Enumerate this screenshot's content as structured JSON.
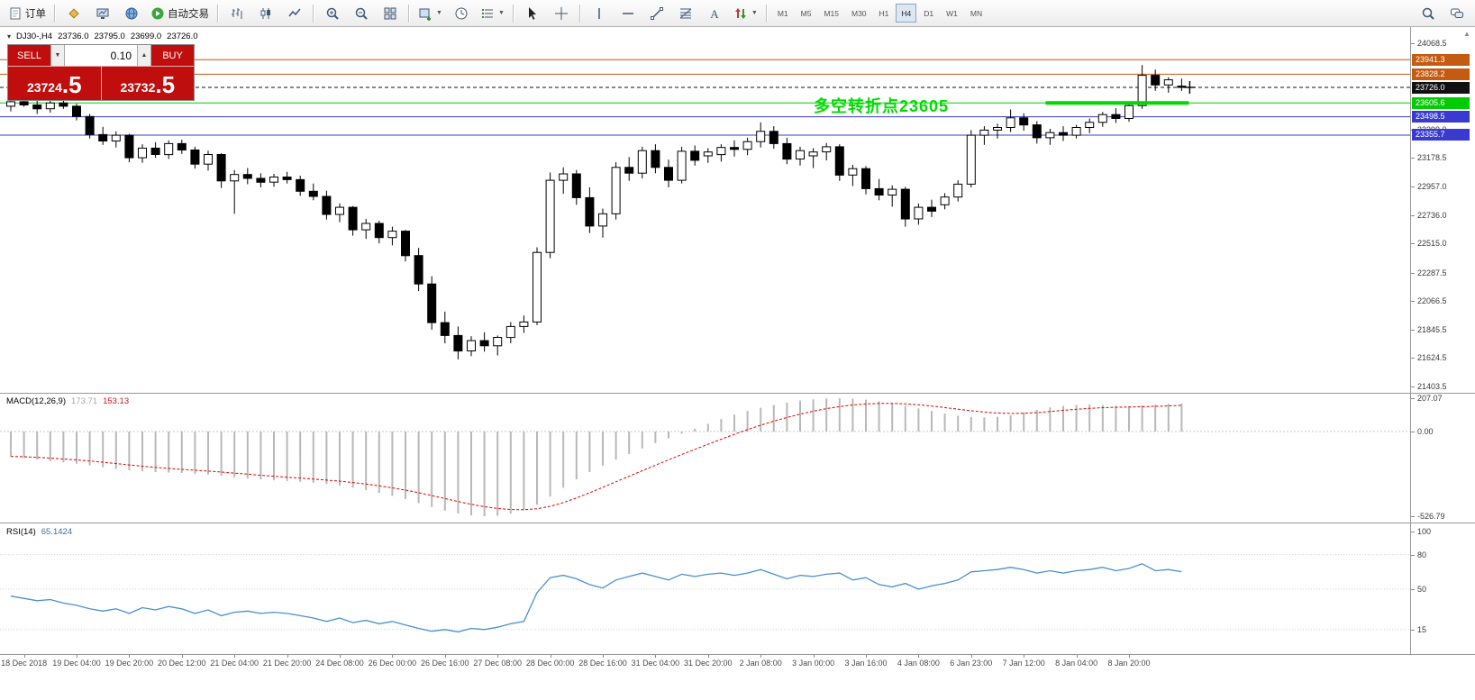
{
  "colors": {
    "bull": "#ffffff",
    "bear": "#000000",
    "outline": "#000000",
    "level_orange": "#c55a11",
    "level_green": "#00cc00",
    "level_blue": "#3a3ad0",
    "current_price": "#111111",
    "macd_hist": "#b8b8b8",
    "macd_signal": "#e00000",
    "rsi_line": "#4a90d2",
    "annotation_green": "#00dc00",
    "trade_red": "#c00d0d"
  },
  "toolbar": {
    "groups": [
      {
        "items": [
          {
            "name": "new-order-button",
            "icon": "doc",
            "label": "订单"
          }
        ]
      },
      {
        "items": [
          {
            "name": "favorites-icon",
            "icon": "diamond"
          },
          {
            "name": "charts-icon",
            "icon": "monitor"
          },
          {
            "name": "community-icon",
            "icon": "globe"
          },
          {
            "name": "autotrading-button",
            "icon": "play",
            "label": "自动交易"
          }
        ]
      },
      {
        "items": [
          {
            "name": "bar-chart-icon",
            "icon": "bar"
          },
          {
            "name": "candlestick-chart-icon",
            "icon": "candle"
          },
          {
            "name": "line-chart-icon",
            "icon": "linechart"
          }
        ]
      },
      {
        "items": [
          {
            "name": "zoom-in-icon",
            "icon": "zoomin"
          },
          {
            "name": "zoom-out-icon",
            "icon": "zoomout"
          },
          {
            "name": "tile-windows-icon",
            "icon": "tiles"
          }
        ]
      },
      {
        "items": [
          {
            "name": "new-chart-icon",
            "icon": "newchart",
            "dropdown": true
          },
          {
            "name": "refresh-icon",
            "icon": "clock"
          },
          {
            "name": "indicators-icon",
            "icon": "list",
            "dropdown": true
          }
        ]
      },
      {
        "items": [
          {
            "name": "cursor-icon",
            "icon": "cursor"
          },
          {
            "name": "crosshair-icon",
            "icon": "crosshair"
          }
        ]
      },
      {
        "items": [
          {
            "name": "vertical-line-icon",
            "icon": "vline"
          },
          {
            "name": "horizontal-line-icon",
            "icon": "hline"
          },
          {
            "name": "trendline-icon",
            "icon": "tline"
          },
          {
            "name": "fibonacci-icon",
            "icon": "fibo"
          },
          {
            "name": "text-icon",
            "icon": "textA"
          },
          {
            "name": "arrows-icon",
            "icon": "arrows",
            "dropdown": true
          }
        ]
      }
    ],
    "timeframes": [
      "M1",
      "M5",
      "M15",
      "M30",
      "H1",
      "H4",
      "D1",
      "W1",
      "MN"
    ],
    "active_timeframe": "H4",
    "right_items": [
      {
        "name": "search-icon",
        "icon": "search"
      },
      {
        "name": "chat-icon",
        "icon": "chat"
      }
    ]
  },
  "chart_header": {
    "symbol_period": "DJ30-,H4",
    "open": "23736.0",
    "high": "23795.0",
    "low": "23699.0",
    "close": "23726.0"
  },
  "trade_panel": {
    "sell_label": "SELL",
    "buy_label": "BUY",
    "volume": "0.10",
    "sell_price_main": "23724",
    "sell_price_big": ".5",
    "buy_price_main": "23732",
    "buy_price_big": ".5"
  },
  "annotation": {
    "text": "多空转折点23605"
  },
  "macd_panel": {
    "title": "MACD(12,26,9)",
    "value_main": "173.71",
    "value_signal": "153.13",
    "scale_max": "207.07",
    "scale_zero": "0.00",
    "scale_min": "-526.79"
  },
  "rsi_panel": {
    "title": "RSI(14)",
    "value": "65.1424"
  },
  "chart_data": {
    "type": "candlestick",
    "symbol": "DJ30-",
    "period": "H4",
    "title": "DJ30-,H4 23736.0 23795.0 23699.0 23726.0",
    "price_range": {
      "min": 21390,
      "max": 24090
    },
    "grid": false,
    "candles": [
      [
        23580,
        23645,
        23540,
        23615
      ],
      [
        23615,
        23660,
        23575,
        23590
      ],
      [
        23590,
        23630,
        23520,
        23560
      ],
      [
        23560,
        23625,
        23530,
        23605
      ],
      [
        23605,
        23650,
        23560,
        23580
      ],
      [
        23580,
        23600,
        23470,
        23500
      ],
      [
        23500,
        23520,
        23330,
        23360
      ],
      [
        23360,
        23420,
        23280,
        23310
      ],
      [
        23310,
        23385,
        23260,
        23355
      ],
      [
        23355,
        23365,
        23145,
        23180
      ],
      [
        23180,
        23285,
        23140,
        23255
      ],
      [
        23255,
        23300,
        23180,
        23205
      ],
      [
        23205,
        23315,
        23170,
        23290
      ],
      [
        23290,
        23320,
        23210,
        23240
      ],
      [
        23240,
        23265,
        23095,
        23130
      ],
      [
        23130,
        23235,
        23080,
        23205
      ],
      [
        23205,
        23215,
        22945,
        23000
      ],
      [
        23000,
        23085,
        22745,
        23050
      ],
      [
        23050,
        23100,
        22975,
        23020
      ],
      [
        23020,
        23060,
        22950,
        22990
      ],
      [
        22990,
        23055,
        22955,
        23030
      ],
      [
        23030,
        23070,
        22980,
        23010
      ],
      [
        23010,
        23040,
        22885,
        22920
      ],
      [
        22920,
        22980,
        22850,
        22880
      ],
      [
        22880,
        22925,
        22700,
        22740
      ],
      [
        22740,
        22825,
        22680,
        22795
      ],
      [
        22795,
        22805,
        22575,
        22620
      ],
      [
        22620,
        22705,
        22550,
        22670
      ],
      [
        22670,
        22690,
        22515,
        22560
      ],
      [
        22560,
        22645,
        22500,
        22610
      ],
      [
        22610,
        22620,
        22375,
        22420
      ],
      [
        22420,
        22480,
        22145,
        22200
      ],
      [
        22200,
        22260,
        21845,
        21900
      ],
      [
        21900,
        21985,
        21740,
        21800
      ],
      [
        21800,
        21870,
        21615,
        21680
      ],
      [
        21680,
        21795,
        21640,
        21760
      ],
      [
        21760,
        21825,
        21675,
        21720
      ],
      [
        21720,
        21800,
        21645,
        21785
      ],
      [
        21785,
        21905,
        21740,
        21870
      ],
      [
        21870,
        21955,
        21820,
        21905
      ],
      [
        21905,
        22485,
        21880,
        22445
      ],
      [
        22445,
        23065,
        22400,
        23005
      ],
      [
        23005,
        23105,
        22900,
        23055
      ],
      [
        23055,
        23085,
        22815,
        22870
      ],
      [
        22870,
        22950,
        22595,
        22650
      ],
      [
        22650,
        22785,
        22560,
        22745
      ],
      [
        22745,
        23145,
        22700,
        23105
      ],
      [
        23105,
        23185,
        23000,
        23060
      ],
      [
        23060,
        23265,
        23020,
        23235
      ],
      [
        23235,
        23285,
        23060,
        23105
      ],
      [
        23105,
        23165,
        22950,
        23005
      ],
      [
        23005,
        23265,
        22980,
        23230
      ],
      [
        23230,
        23275,
        23120,
        23160
      ],
      [
        23195,
        23255,
        23140,
        23225
      ],
      [
        23205,
        23285,
        23150,
        23260
      ],
      [
        23260,
        23315,
        23190,
        23245
      ],
      [
        23245,
        23335,
        23200,
        23305
      ],
      [
        23305,
        23455,
        23260,
        23385
      ],
      [
        23385,
        23425,
        23250,
        23290
      ],
      [
        23290,
        23335,
        23130,
        23170
      ],
      [
        23170,
        23265,
        23120,
        23235
      ],
      [
        23195,
        23255,
        23100,
        23225
      ],
      [
        23225,
        23295,
        23160,
        23265
      ],
      [
        23265,
        23285,
        23000,
        23045
      ],
      [
        23045,
        23125,
        22960,
        23095
      ],
      [
        23095,
        23115,
        22895,
        22940
      ],
      [
        22940,
        23015,
        22850,
        22890
      ],
      [
        22890,
        22965,
        22800,
        22935
      ],
      [
        22935,
        22955,
        22645,
        22705
      ],
      [
        22705,
        22825,
        22660,
        22795
      ],
      [
        22795,
        22855,
        22720,
        22765
      ],
      [
        22815,
        22905,
        22780,
        22875
      ],
      [
        22875,
        23005,
        22840,
        22975
      ],
      [
        22975,
        23395,
        22950,
        23355
      ],
      [
        23355,
        23425,
        23280,
        23395
      ],
      [
        23395,
        23445,
        23330,
        23415
      ],
      [
        23415,
        23555,
        23380,
        23490
      ],
      [
        23490,
        23525,
        23390,
        23435
      ],
      [
        23435,
        23465,
        23290,
        23335
      ],
      [
        23335,
        23405,
        23280,
        23375
      ],
      [
        23375,
        23425,
        23310,
        23355
      ],
      [
        23355,
        23435,
        23330,
        23415
      ],
      [
        23415,
        23485,
        23370,
        23455
      ],
      [
        23455,
        23535,
        23420,
        23515
      ],
      [
        23515,
        23565,
        23450,
        23485
      ],
      [
        23485,
        23605,
        23460,
        23585
      ],
      [
        23585,
        23900,
        23560,
        23820
      ],
      [
        23820,
        23865,
        23700,
        23745
      ],
      [
        23745,
        23805,
        23685,
        23785
      ],
      [
        23736,
        23795,
        23699,
        23726
      ]
    ],
    "time_labels": [
      "18 Dec 2018",
      "19 Dec 04:00",
      "19 Dec 20:00",
      "20 Dec 12:00",
      "21 Dec 04:00",
      "21 Dec 20:00",
      "24 Dec 08:00",
      "26 Dec 00:00",
      "26 Dec 16:00",
      "27 Dec 08:00",
      "28 Dec 00:00",
      "28 Dec 16:00",
      "31 Dec 04:00",
      "31 Dec 20:00",
      "2 Jan 08:00",
      "3 Jan 00:00",
      "3 Jan 16:00",
      "4 Jan 08:00",
      "6 Jan 23:00",
      "7 Jan 12:00",
      "8 Jan 04:00",
      "8 Jan 20:00"
    ],
    "label_start_index": 1,
    "label_every": 4,
    "price_axis_ticks": [
      "24068.5",
      "23399.0",
      "23178.5",
      "22957.0",
      "22736.0",
      "22515.0",
      "22287.5",
      "22066.5",
      "21845.5",
      "21624.5",
      "21403.5"
    ],
    "levels": [
      {
        "label": "23941.3",
        "price": 23941.3,
        "color": "#c55a11",
        "style": "solid",
        "kind": "resistance"
      },
      {
        "label": "23828.2",
        "price": 23828.2,
        "color": "#c55a11",
        "style": "solid",
        "kind": "resistance"
      },
      {
        "label": "23726.0",
        "price": 23726.0,
        "color": "#111111",
        "style": "dashed",
        "kind": "current-price"
      },
      {
        "label": "23605.6",
        "price": 23605.6,
        "color": "#00cc00",
        "style": "solid",
        "kind": "pivot"
      },
      {
        "label": "23498.5",
        "price": 23498.5,
        "color": "#3a3ad0",
        "style": "solid",
        "kind": "support"
      },
      {
        "label": "23355.7",
        "price": 23355.7,
        "color": "#3a3ad0",
        "style": "solid",
        "kind": "support"
      }
    ],
    "highlight_segment": {
      "price": 23605.6,
      "from_index": 79,
      "to_index": 89,
      "color": "#00d800"
    },
    "macd": {
      "params": "12,26,9",
      "current_macd": 173.71,
      "current_signal": 153.13,
      "scale": {
        "max": 207.07,
        "zero": 0.0,
        "min": -526.79
      },
      "values": [
        -155,
        -165,
        -175,
        -185,
        -192,
        -200,
        -210,
        -222,
        -232,
        -242,
        -248,
        -252,
        -255,
        -258,
        -263,
        -268,
        -276,
        -285,
        -292,
        -298,
        -303,
        -308,
        -313,
        -319,
        -327,
        -337,
        -350,
        -365,
        -382,
        -400,
        -420,
        -445,
        -470,
        -492,
        -510,
        -521,
        -527,
        -524,
        -512,
        -490,
        -455,
        -405,
        -350,
        -298,
        -252,
        -212,
        -175,
        -140,
        -105,
        -72,
        -42,
        -12,
        18,
        48,
        78,
        105,
        128,
        148,
        165,
        180,
        192,
        200,
        206,
        207,
        204,
        198,
        188,
        175,
        160,
        144,
        128,
        112,
        98,
        90,
        88,
        92,
        102,
        118,
        135,
        150,
        160,
        166,
        168,
        165,
        160,
        158,
        162,
        168,
        172,
        174
      ]
    },
    "rsi": {
      "params": "14",
      "current": 65.1424,
      "levels": [
        100,
        80,
        50,
        15
      ],
      "values": [
        44,
        42,
        40,
        41,
        38,
        36,
        33,
        31,
        33,
        29,
        34,
        32,
        35,
        33,
        29,
        32,
        27,
        30,
        31,
        29,
        30,
        29,
        27,
        25,
        22,
        25,
        21,
        23,
        20,
        22,
        19,
        16,
        13.5,
        15,
        13,
        16,
        15,
        17,
        20,
        22,
        47,
        60,
        62,
        59,
        54,
        51,
        58,
        61,
        64,
        61,
        58,
        63,
        61,
        63,
        64,
        62,
        64,
        67,
        63,
        59,
        62,
        61,
        63,
        64,
        58,
        60,
        54,
        52,
        55,
        50,
        53,
        55,
        58,
        65,
        66,
        67,
        69,
        67,
        64,
        66,
        64,
        66,
        67,
        69,
        66,
        68,
        72,
        66,
        67,
        65.14
      ]
    }
  }
}
